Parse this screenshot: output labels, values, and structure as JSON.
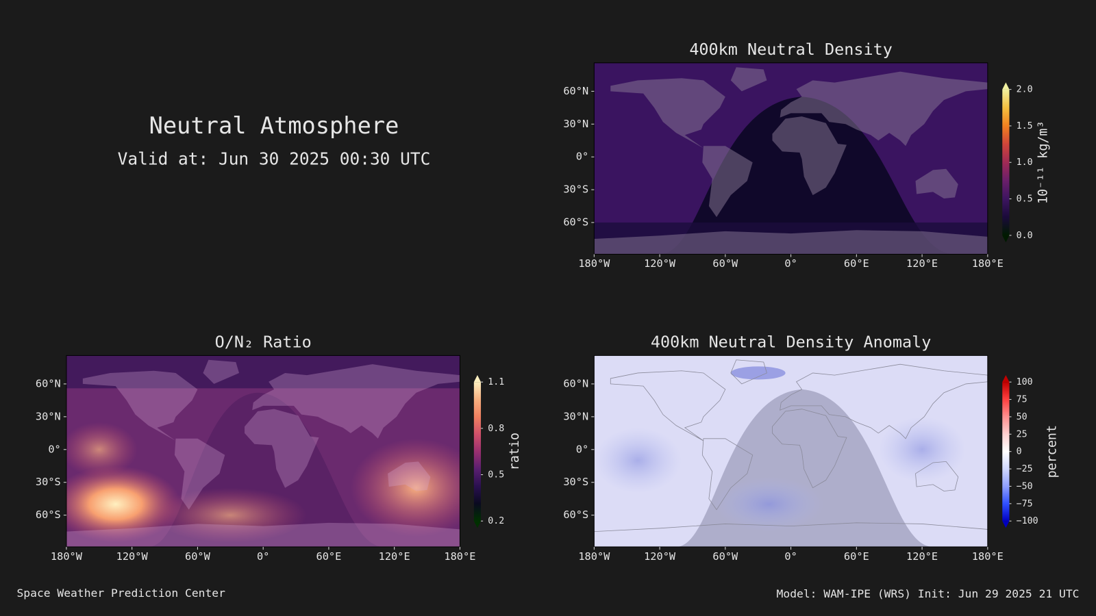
{
  "header": {
    "title": "Neutral Atmosphere",
    "subtitle": "Valid at: Jun 30 2025 00:30 UTC"
  },
  "footer": {
    "left": "Space Weather Prediction Center",
    "right": "Model: WAM-IPE (WRS) Init: Jun 29 2025 21 UTC"
  },
  "map_axes": {
    "xlim": [
      -180,
      180
    ],
    "xticks": [
      {
        "value": -180,
        "label": "180°W"
      },
      {
        "value": -120,
        "label": "120°W"
      },
      {
        "value": -60,
        "label": "60°W"
      },
      {
        "value": 0,
        "label": "0°"
      },
      {
        "value": 60,
        "label": "60°E"
      },
      {
        "value": 120,
        "label": "120°E"
      },
      {
        "value": 180,
        "label": "180°E"
      }
    ],
    "ylim": [
      -89,
      86
    ],
    "yticks": [
      {
        "value": 60,
        "label": "60°N"
      },
      {
        "value": 30,
        "label": "30°N"
      },
      {
        "value": 0,
        "label": "0°"
      },
      {
        "value": -30,
        "label": "30°S"
      },
      {
        "value": -60,
        "label": "60°S"
      }
    ]
  },
  "panels": [
    {
      "type": "map",
      "title": "400km Neutral Density",
      "colorbar_label": "10⁻¹¹ kg/m³",
      "clim": [
        0,
        2.0
      ],
      "cticks": [
        {
          "value": 0,
          "label": "0.0"
        },
        {
          "value": 0.5,
          "label": "0.5"
        },
        {
          "value": 1.0,
          "label": "1.0"
        },
        {
          "value": 1.5,
          "label": "1.5"
        },
        {
          "value": 2.0,
          "label": "2.0"
        }
      ],
      "colormap": [
        "#001a00",
        "#1a0a3a",
        "#3d1560",
        "#6a1f6a",
        "#a02a55",
        "#d0453a",
        "#f08020",
        "#f5c040",
        "#f0f0a0"
      ]
    },
    {
      "type": "map",
      "title": "O/N₂ Ratio",
      "colorbar_label": "ratio",
      "clim": [
        0.2,
        1.1
      ],
      "cticks": [
        0.2,
        0.5,
        0.8,
        1.1
      ],
      "colormap": [
        "#003000",
        "#0a0a20",
        "#2a1050",
        "#5a1f70",
        "#9a3070",
        "#d0506a",
        "#f08060",
        "#f8b080",
        "#fff0c0"
      ]
    },
    {
      "type": "map",
      "title": "400km Neutral Density Anomaly",
      "colorbar_label": "percent",
      "clim": [
        -100,
        100
      ],
      "cticks": [
        {
          "value": -100,
          "label": "−100"
        },
        {
          "value": -75,
          "label": "−75"
        },
        {
          "value": -50,
          "label": "−50"
        },
        {
          "value": -25,
          "label": "−25"
        },
        0,
        25,
        50,
        75,
        100
      ],
      "colormap": [
        "#0000c0",
        "#3050ff",
        "#90a0ff",
        "#d0d8ff",
        "#ffffff",
        "#ffd0d0",
        "#ff9090",
        "#ff4040",
        "#c00000"
      ]
    }
  ]
}
